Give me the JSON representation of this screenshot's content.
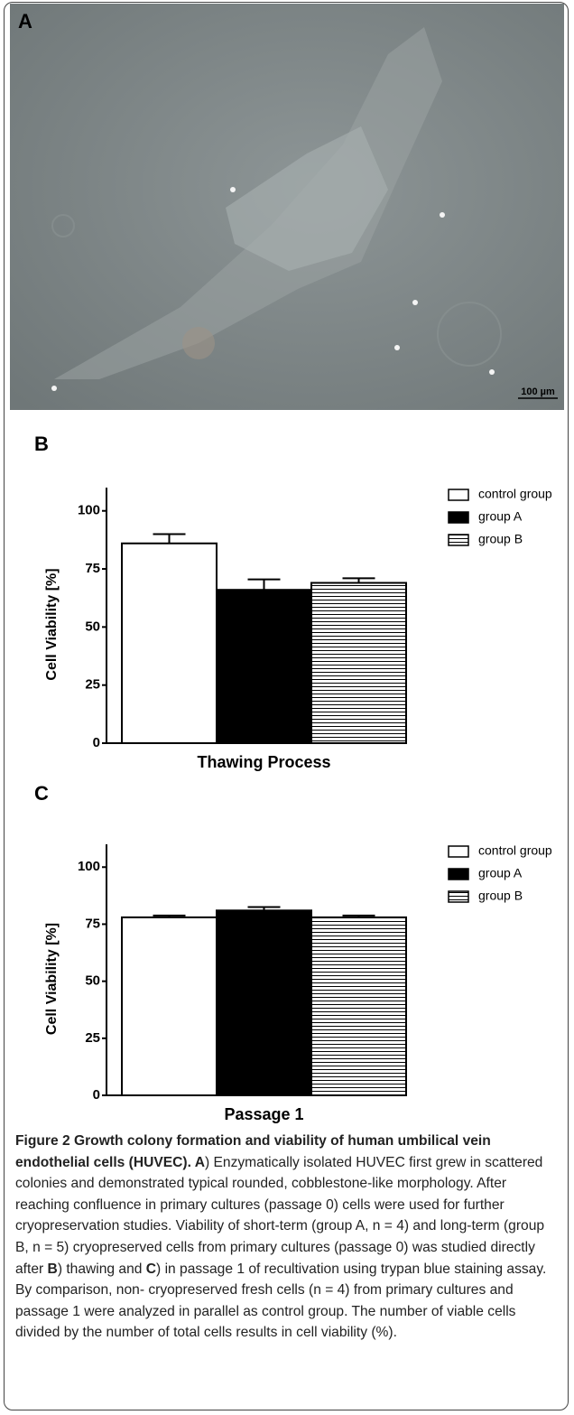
{
  "micrograph": {
    "label": "A",
    "scale_bar": "100 µm"
  },
  "chart_data": [
    {
      "type": "bar",
      "panel": "B",
      "ylabel": "Cell Viability [%]",
      "xlabel": "Thawing Process",
      "ylim": [
        0,
        110
      ],
      "yticks": [
        0,
        25,
        50,
        75,
        100
      ],
      "series": [
        {
          "name": "control group",
          "color": "#ffffff",
          "values": [
            86
          ],
          "errors": [
            4
          ]
        },
        {
          "name": "group A",
          "color": "#000000",
          "values": [
            66
          ],
          "errors": [
            4.5
          ]
        },
        {
          "name": "group B",
          "color": "#ffffff",
          "hatch": "horizontal",
          "values": [
            69
          ],
          "errors": [
            2
          ]
        }
      ]
    },
    {
      "type": "bar",
      "panel": "C",
      "ylabel": "Cell Viability [%]",
      "xlabel": "Passage 1",
      "ylim": [
        0,
        110
      ],
      "yticks": [
        0,
        25,
        50,
        75,
        100
      ],
      "series": [
        {
          "name": "control group",
          "color": "#ffffff",
          "values": [
            78
          ],
          "errors": [
            0.8
          ]
        },
        {
          "name": "group A",
          "color": "#000000",
          "values": [
            81
          ],
          "errors": [
            1.5
          ]
        },
        {
          "name": "group B",
          "color": "#ffffff",
          "hatch": "horizontal",
          "values": [
            78
          ],
          "errors": [
            0.8
          ]
        }
      ]
    }
  ],
  "caption": [
    "Figure 2 Growth colony formation and viability of human umbilical vein endothelial cells (HUVEC). ",
    "A",
    ") Enzymatically isolated HUVEC first grew in scattered colonies and demonstrated typical rounded, cobblestone-like morphology. After reaching confluence in primary cultures (passage 0) cells were used for further cryopreservation studies. Viability of short-term (group A, n = 4) and long-term (group B, n = 5) cryopreserved cells from primary cultures (passage 0) was studied directly after ",
    "B",
    ") thawing and ",
    "C",
    ") in passage 1 of recultivation using trypan blue staining assay. By comparison, non- cryopreserved fresh cells (n = 4) from primary cultures and passage 1 were analyzed in parallel as control group. The number of viable cells divided by the number of total cells results in cell viability (%)."
  ]
}
